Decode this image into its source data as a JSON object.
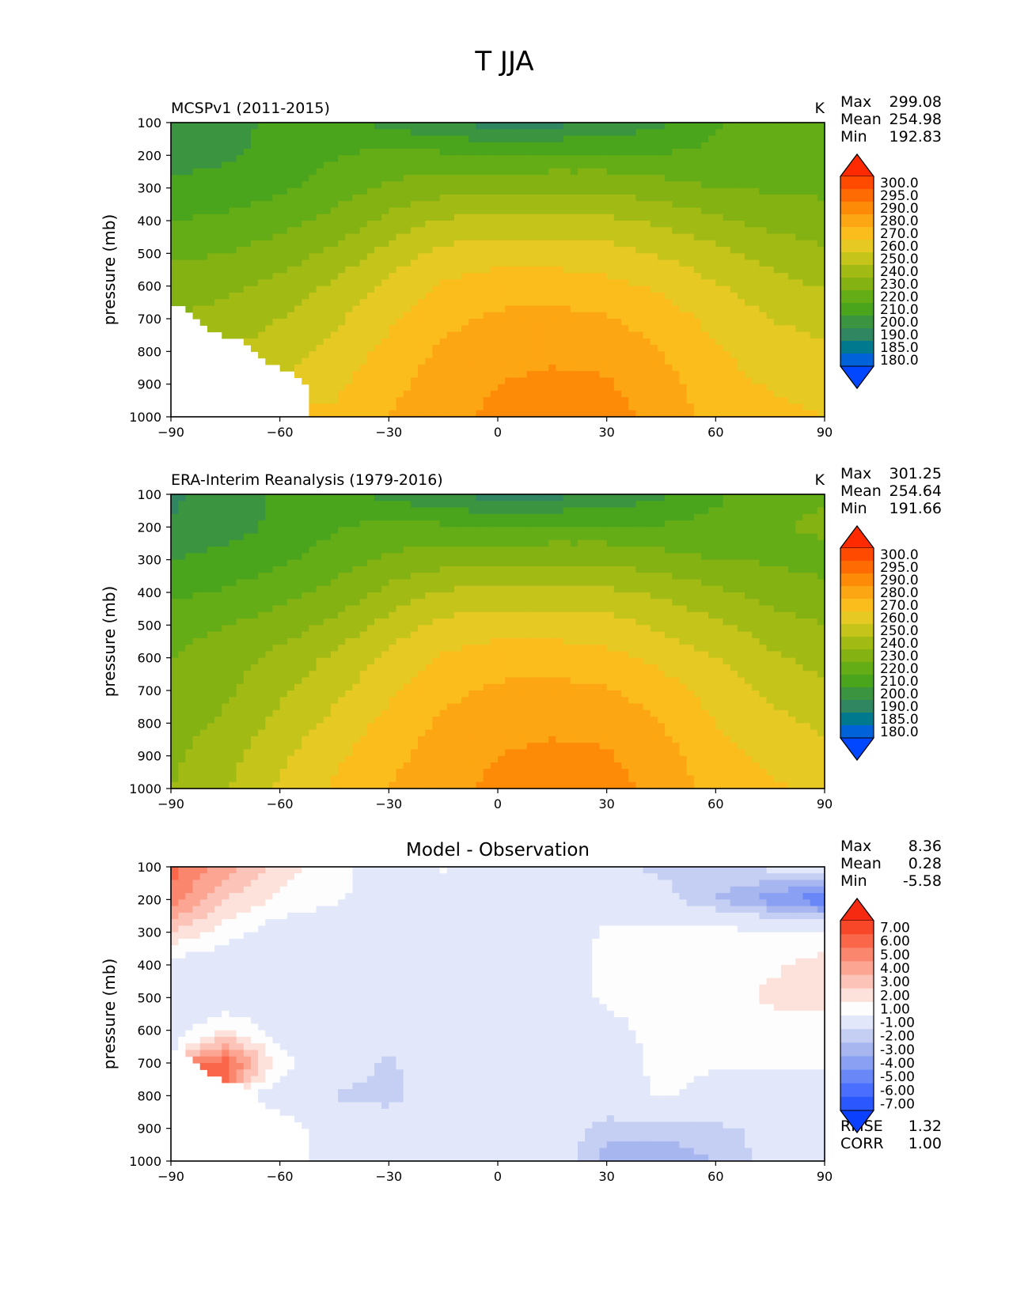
{
  "suptitle": "T JJA",
  "ylabel": "pressure (mb)",
  "colors": {
    "main_levels": [
      180,
      185,
      190,
      200,
      210,
      220,
      230,
      240,
      250,
      260,
      270,
      280,
      290,
      295,
      300
    ],
    "main_colors": [
      "#0047ff",
      "#0062d8",
      "#00788e",
      "#2f8660",
      "#3a9440",
      "#4aa51c",
      "#64ad16",
      "#84b212",
      "#a2ba14",
      "#c5c41a",
      "#e6c923",
      "#fbbd1c",
      "#fda613",
      "#fd8b08",
      "#fe6b02",
      "#ff4a00",
      "#ff2a00"
    ],
    "diff_levels": [
      -7,
      -6,
      -5,
      -4,
      -3,
      -2,
      -1,
      1,
      2,
      3,
      4,
      5,
      6,
      7
    ],
    "diff_colors": [
      "#0b40ff",
      "#2a57ff",
      "#4a6eff",
      "#6a87f7",
      "#8aa0f2",
      "#a8b6f0",
      "#c5cef3",
      "#e2e8fa",
      "#fdfdfd",
      "#fde2dc",
      "#fcc4b8",
      "#fca593",
      "#fb866e",
      "#f96649",
      "#f74628",
      "#f52a10"
    ]
  },
  "panels": [
    {
      "title_left": "MCSPv1 (2011-2015)",
      "title_right": "K",
      "title_center": "",
      "stats": [
        [
          "Max",
          "299.08"
        ],
        [
          "Mean",
          "254.98"
        ],
        [
          "Min",
          "192.83"
        ]
      ],
      "extra_stats": [],
      "colorbar": "main"
    },
    {
      "title_left": "ERA-Interim Reanalysis (1979-2016)",
      "title_right": "K",
      "title_center": "",
      "stats": [
        [
          "Max",
          "301.25"
        ],
        [
          "Mean",
          "254.64"
        ],
        [
          "Min",
          "191.66"
        ]
      ],
      "extra_stats": [],
      "colorbar": "main"
    },
    {
      "title_left": "",
      "title_right": "",
      "title_center": "Model - Observation",
      "stats": [
        [
          "Max",
          "8.36"
        ],
        [
          "Mean",
          "0.28"
        ],
        [
          "Min",
          "-5.58"
        ]
      ],
      "extra_stats": [
        [
          "RMSE",
          "1.32"
        ],
        [
          "CORR",
          "1.00"
        ]
      ],
      "colorbar": "diff"
    }
  ],
  "colorbar_labels": {
    "main": [
      "300.0",
      "295.0",
      "290.0",
      "280.0",
      "270.0",
      "260.0",
      "250.0",
      "240.0",
      "230.0",
      "220.0",
      "210.0",
      "200.0",
      "190.0",
      "185.0",
      "180.0"
    ],
    "diff": [
      "7.00",
      "6.00",
      "5.00",
      "4.00",
      "3.00",
      "2.00",
      "1.00",
      "-1.00",
      "-2.00",
      "-3.00",
      "-4.00",
      "-5.00",
      "-6.00",
      "-7.00"
    ]
  },
  "chart_data": [
    {
      "type": "heatmap",
      "title": "MCSPv1 (2011-2015)",
      "units": "K",
      "xlabel": "",
      "ylabel": "pressure (mb)",
      "xlim": [
        -90,
        90
      ],
      "ylim": [
        1000,
        100
      ],
      "x_ticks": [
        -90,
        -60,
        -30,
        0,
        30,
        60,
        90
      ],
      "y_ticks": [
        100,
        200,
        300,
        400,
        500,
        600,
        700,
        800,
        900,
        1000
      ],
      "x": [
        -90,
        -75,
        -60,
        -45,
        -30,
        -15,
        0,
        15,
        30,
        45,
        60,
        75,
        90
      ],
      "y": [
        100,
        200,
        300,
        400,
        500,
        600,
        700,
        800,
        900,
        1000
      ],
      "values": [
        [
          205,
          207,
          212,
          214,
          207,
          200,
          196,
          197,
          201,
          208,
          219,
          224,
          226
        ],
        [
          205,
          208,
          214,
          219,
          223,
          222,
          221,
          222,
          222,
          221,
          222,
          225,
          226
        ],
        [
          213,
          215,
          218,
          225,
          232,
          236,
          238,
          238,
          238,
          234,
          230,
          229,
          228
        ],
        [
          220,
          222,
          226,
          233,
          243,
          251,
          253,
          253,
          252,
          248,
          242,
          237,
          234
        ],
        [
          228,
          230,
          235,
          242,
          254,
          263,
          266,
          266,
          264,
          259,
          253,
          246,
          242
        ],
        [
          236,
          238,
          243,
          252,
          263,
          271,
          275,
          275,
          273,
          268,
          261,
          254,
          249
        ],
        [
          null,
          243,
          250,
          258,
          268,
          277,
          282,
          283,
          281,
          275,
          267,
          260,
          256
        ],
        [
          null,
          null,
          255,
          263,
          273,
          282,
          286,
          288,
          287,
          280,
          271,
          265,
          262
        ],
        [
          null,
          null,
          null,
          268,
          277,
          285,
          290,
          292,
          291,
          284,
          274,
          269,
          266
        ],
        [
          null,
          null,
          null,
          271,
          280,
          288,
          292,
          295,
          294,
          286,
          277,
          273,
          270
        ]
      ],
      "stats": {
        "Max": 299.08,
        "Mean": 254.98,
        "Min": 192.83
      }
    },
    {
      "type": "heatmap",
      "title": "ERA-Interim Reanalysis (1979-2016)",
      "units": "K",
      "xlabel": "",
      "ylabel": "pressure (mb)",
      "xlim": [
        -90,
        90
      ],
      "ylim": [
        1000,
        100
      ],
      "x_ticks": [
        -90,
        -60,
        -30,
        0,
        30,
        60,
        90
      ],
      "y_ticks": [
        100,
        200,
        300,
        400,
        500,
        600,
        700,
        800,
        900,
        1000
      ],
      "x": [
        -90,
        -75,
        -60,
        -45,
        -30,
        -15,
        0,
        15,
        30,
        45,
        60,
        75,
        90
      ],
      "y": [
        100,
        200,
        300,
        400,
        500,
        600,
        700,
        800,
        900,
        1000
      ],
      "values": [
        [
          199,
          203,
          212,
          214,
          207,
          200,
          196,
          197,
          201,
          208,
          218,
          226,
          229
        ],
        [
          200,
          205,
          213,
          219,
          223,
          222,
          221,
          222,
          222,
          221,
          223,
          229,
          232
        ],
        [
          210,
          214,
          218,
          225,
          232,
          236,
          238,
          238,
          238,
          234,
          230,
          229,
          226
        ],
        [
          218,
          221,
          226,
          233,
          243,
          251,
          253,
          253,
          252,
          248,
          242,
          236,
          233
        ],
        [
          226,
          230,
          235,
          242,
          254,
          263,
          266,
          266,
          264,
          258,
          252,
          245,
          240
        ],
        [
          230,
          235,
          243,
          252,
          263,
          271,
          275,
          275,
          273,
          267,
          260,
          252,
          246
        ],
        [
          232,
          238,
          248,
          257,
          268,
          277,
          282,
          283,
          281,
          275,
          266,
          258,
          252
        ],
        [
          235,
          242,
          253,
          263,
          273,
          282,
          286,
          288,
          287,
          280,
          270,
          263,
          258
        ],
        [
          238,
          246,
          258,
          268,
          277,
          285,
          290,
          292,
          291,
          284,
          274,
          267,
          263
        ],
        [
          240,
          249,
          262,
          271,
          280,
          288,
          292,
          295,
          294,
          286,
          277,
          272,
          268
        ]
      ],
      "stats": {
        "Max": 301.25,
        "Mean": 254.64,
        "Min": 191.66
      }
    },
    {
      "type": "heatmap",
      "title": "Model - Observation",
      "units": "K",
      "xlabel": "",
      "ylabel": "pressure (mb)",
      "xlim": [
        -90,
        90
      ],
      "ylim": [
        1000,
        100
      ],
      "x_ticks": [
        -90,
        -60,
        -30,
        0,
        30,
        60,
        90
      ],
      "y_ticks": [
        100,
        200,
        300,
        400,
        500,
        600,
        700,
        800,
        900,
        1000
      ],
      "x": [
        -90,
        -75,
        -60,
        -45,
        -30,
        -15,
        0,
        15,
        30,
        45,
        60,
        75,
        90
      ],
      "y": [
        100,
        200,
        300,
        400,
        500,
        600,
        700,
        800,
        900,
        1000
      ],
      "values": [
        [
          6.5,
          4.5,
          2.5,
          1.5,
          0.0,
          1.1,
          0.0,
          0.0,
          -0.6,
          -1.3,
          -1.2,
          -0.7,
          -0.5
        ],
        [
          5.5,
          3.0,
          1.8,
          1.2,
          0.3,
          0.2,
          0.0,
          0.0,
          0.0,
          -0.5,
          -2.0,
          -3.5,
          -5.0
        ],
        [
          3.0,
          1.5,
          0.3,
          0.0,
          0.0,
          0.0,
          0.0,
          0.0,
          1.2,
          1.5,
          1.5,
          1.2,
          1.0
        ],
        [
          0.3,
          0.2,
          0.0,
          0.0,
          0.0,
          0.0,
          0.0,
          0.0,
          1.5,
          1.6,
          1.5,
          1.8,
          2.5
        ],
        [
          0.2,
          0.2,
          0.0,
          0.0,
          0.0,
          0.0,
          0.0,
          0.0,
          1.3,
          1.5,
          1.5,
          2.2,
          2.5
        ],
        [
          0.3,
          2.0,
          0.5,
          0.0,
          0.0,
          0.0,
          0.0,
          0.0,
          0.5,
          1.5,
          1.2,
          1.5,
          1.5
        ],
        [
          null,
          6.5,
          1.5,
          0.0,
          -1.2,
          0.0,
          0.0,
          0.0,
          0.0,
          1.5,
          1.1,
          1.2,
          1.2
        ],
        [
          null,
          null,
          0.5,
          -1.1,
          -1.5,
          0.0,
          0.0,
          0.0,
          0.0,
          1.2,
          0.5,
          0.3,
          0.5
        ],
        [
          null,
          null,
          null,
          0.0,
          0.0,
          0.0,
          0.0,
          0.0,
          -1.5,
          -1.5,
          -1.3,
          -0.6,
          0.0
        ],
        [
          null,
          null,
          null,
          0.0,
          0.0,
          0.0,
          0.0,
          0.0,
          -2.5,
          -2.8,
          -2.0,
          -0.5,
          0.0
        ]
      ],
      "stats": {
        "Max": 8.36,
        "Mean": 0.28,
        "Min": -5.58,
        "RMSE": 1.32,
        "CORR": 1.0
      }
    }
  ]
}
